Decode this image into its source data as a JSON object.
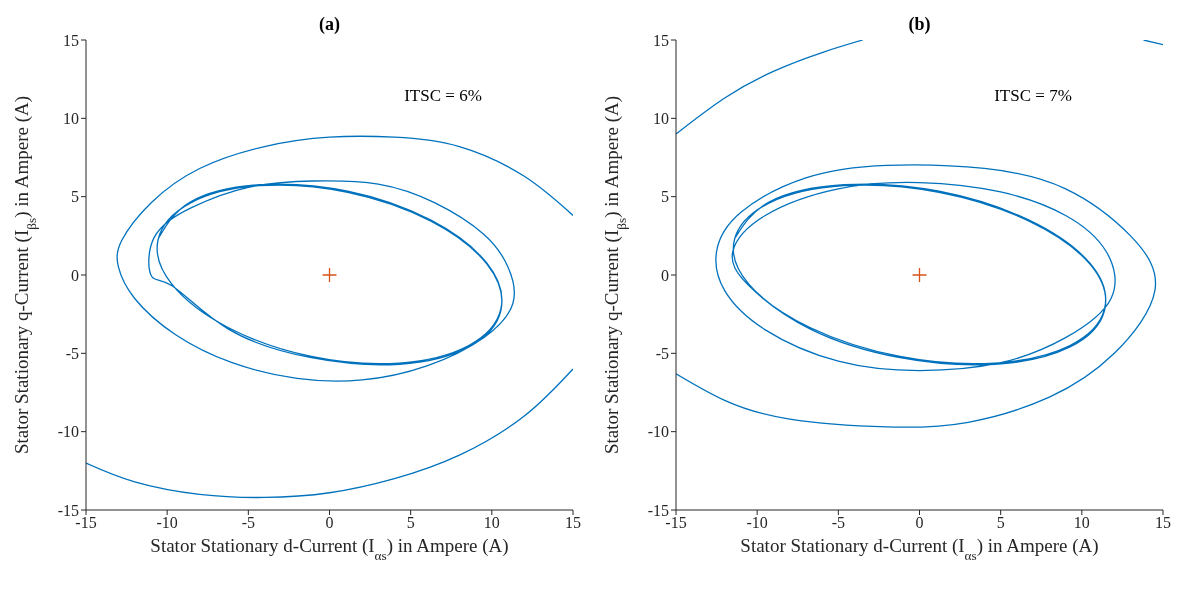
{
  "chart_data": [
    {
      "type": "line",
      "title": "(a)",
      "xlabel": "Stator Stationary d-Current (I$_{αs}$) in Ampere (A)",
      "ylabel": "Stator Stationary q-Current (I$_{βs}$) in Ampere (A)",
      "annotations": [
        "ITSC = 6%"
      ],
      "xlim": [
        -15,
        15
      ],
      "ylim": [
        -15,
        15
      ],
      "xticks": [
        -15,
        -10,
        -5,
        0,
        5,
        10,
        15
      ],
      "yticks": [
        -15,
        -10,
        -5,
        0,
        5,
        10,
        15
      ],
      "marker": "none",
      "series": [
        {
          "color": "#0072bd",
          "x": [
            -15,
            -12,
            -8,
            -4,
            0,
            4,
            8,
            12,
            15
          ],
          "values": [
            -12,
            -13.2,
            -14,
            -14.2,
            -13.9,
            -13,
            -11.5,
            -9,
            -6
          ]
        },
        {
          "color": "#0072bd",
          "x": [
            15,
            12,
            8,
            4,
            0,
            -4,
            -8,
            -11,
            -12.8,
            -13,
            -12,
            -9.5,
            -6,
            -2,
            2,
            6,
            9.5,
            11.3,
            11,
            9.5,
            6.5,
            3,
            -1,
            -5,
            -8.5,
            -10.8,
            -11,
            -9.7,
            -6.25,
            -1.12,
            4.31,
            8.58,
            10.56,
            9.7,
            6.25,
            1.12,
            -4.31,
            -8.58,
            -10.56,
            -9.7,
            -6.25,
            -1.12,
            4.31,
            8.58,
            10.56,
            9.7,
            6.25,
            1.12,
            -4.31,
            -8.58,
            -10.56
          ],
          "values": [
            3.8,
            6.3,
            8.2,
            8.8,
            8.8,
            8.2,
            6.8,
            4.6,
            2.2,
            0.5,
            -1.5,
            -3.8,
            -5.6,
            -6.6,
            -6.7,
            -5.8,
            -4,
            -1.8,
            0.5,
            2.6,
            4.6,
            5.8,
            6,
            5.6,
            4.3,
            2.4,
            0,
            -0.69,
            -3.44,
            -5.28,
            -5.7,
            -4.59,
            -2.25,
            0.69,
            3.44,
            5.28,
            5.7,
            4.59,
            2.25,
            -0.6,
            -3.35,
            -5.2,
            -5.62,
            -4.5,
            -2.15,
            0.75,
            3.5,
            5.35,
            5.76,
            4.65,
            2.3
          ]
        },
        {
          "type": "scatter",
          "color": "#d95319",
          "marker": "cross",
          "x": [
            0
          ],
          "values": [
            0
          ]
        }
      ]
    },
    {
      "type": "line",
      "title": "(b)",
      "xlabel": "Stator Stationary d-Current (I$_{αs}$) in Ampere (A)",
      "ylabel": "Stator Stationary q-Current (I$_{βs}$) in Ampere (A)",
      "annotations": [
        "ITSC = 7%"
      ],
      "xlim": [
        -15,
        15
      ],
      "ylim": [
        -15,
        15
      ],
      "xticks": [
        -15,
        -10,
        -5,
        0,
        5,
        10,
        15
      ],
      "yticks": [
        -15,
        -10,
        -5,
        0,
        5,
        10,
        15
      ],
      "marker": "none",
      "series": [
        {
          "color": "#0072bd",
          "x": [
            -15,
            -12,
            -9,
            -6,
            -3.5
          ],
          "values": [
            9,
            11.3,
            13,
            14.2,
            15
          ]
        },
        {
          "color": "#0072bd",
          "x": [
            13.8,
            15
          ],
          "values": [
            15,
            14.7
          ]
        },
        {
          "color": "#0072bd",
          "x": [
            -15,
            -12,
            -8,
            -2,
            3,
            8,
            12,
            14.5,
            13,
            9,
            4,
            -2,
            -7,
            -11,
            -12.5,
            -12,
            -9.5,
            -5,
            0,
            5,
            9,
            11.8,
            11.5,
            9,
            5,
            0,
            -5,
            -9.5,
            -11.5,
            -10.5,
            -6.75,
            -1.2,
            4.65,
            9.27,
            11.4,
            10.5,
            6.75,
            1.2,
            -4.65,
            -9.27,
            -11.4,
            -10.5,
            -6.75,
            -1.2,
            4.65,
            9.27,
            11.4,
            10.5,
            6.75,
            1.2,
            -4.65,
            -9.27,
            -11.4
          ],
          "values": [
            -6.3,
            -8,
            -9.2,
            -9.7,
            -9.4,
            -7.8,
            -5,
            -1,
            2.5,
            5.5,
            6.8,
            7,
            6.2,
            4,
            1.5,
            -1,
            -3.5,
            -5.5,
            -6.1,
            -5.6,
            -4,
            -1.5,
            1.5,
            3.8,
            5.3,
            5.9,
            5.5,
            3.8,
            1.5,
            -0.69,
            -3.44,
            -5.28,
            -5.7,
            -4.59,
            -2.25,
            0.69,
            3.44,
            5.28,
            5.7,
            4.59,
            2.25,
            -0.6,
            -3.35,
            -5.2,
            -5.62,
            -4.5,
            -2.15,
            0.75,
            3.5,
            5.35,
            5.76,
            4.65,
            2.3
          ]
        },
        {
          "type": "scatter",
          "color": "#d95319",
          "marker": "cross",
          "x": [
            0
          ],
          "values": [
            0
          ]
        }
      ]
    }
  ]
}
